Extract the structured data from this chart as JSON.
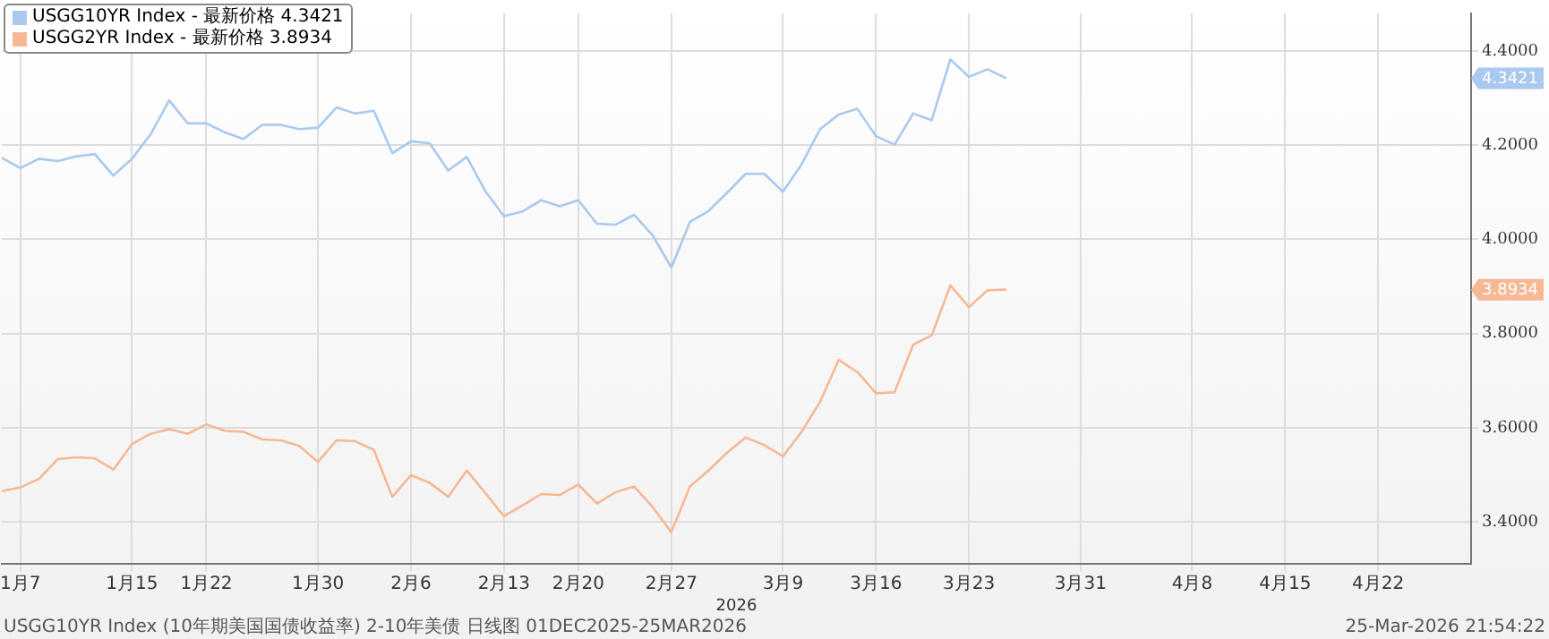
{
  "chart_data": {
    "type": "line",
    "xlabel": "2026",
    "categories": [
      null,
      "1月7",
      null,
      null,
      null,
      null,
      null,
      "1月15",
      null,
      null,
      null,
      "1月22",
      null,
      null,
      null,
      null,
      null,
      "1月30",
      null,
      null,
      null,
      null,
      "2月6",
      null,
      null,
      null,
      null,
      "2月13",
      null,
      null,
      null,
      "2月20",
      null,
      null,
      null,
      null,
      "2月27",
      null,
      null,
      null,
      null,
      null,
      "3月9",
      null,
      null,
      null,
      null,
      "3月16",
      null,
      null,
      null,
      null,
      "3月23",
      null,
      null,
      null,
      null,
      null,
      "3月31",
      null,
      null,
      null,
      null,
      null,
      "4月8",
      null,
      null,
      null,
      null,
      "4月15",
      null,
      null,
      null,
      null,
      "4月22",
      null,
      null,
      null,
      null,
      null
    ],
    "series": [
      {
        "name": "USGG10YR Index - 最新价格 4.3421",
        "color": "#a9c9ee",
        "values": [
          4.173,
          4.151,
          4.171,
          4.166,
          4.176,
          4.181,
          4.135,
          4.171,
          4.223,
          4.295,
          4.246,
          4.246,
          4.227,
          4.213,
          4.243,
          4.243,
          4.234,
          4.237,
          4.28,
          4.267,
          4.273,
          4.183,
          4.208,
          4.204,
          4.146,
          4.175,
          4.102,
          4.049,
          4.059,
          4.083,
          4.07,
          4.083,
          4.033,
          4.031,
          4.052,
          4.008,
          3.94,
          4.037,
          4.06,
          4.099,
          4.139,
          4.139,
          4.101,
          4.159,
          4.234,
          4.265,
          4.277,
          4.219,
          4.201,
          4.267,
          4.253,
          4.382,
          4.345,
          4.361,
          4.342,
          null,
          null,
          null,
          null,
          null,
          null,
          null,
          null,
          null,
          null,
          null,
          null,
          null,
          null,
          null,
          null,
          null,
          null,
          null,
          null,
          null,
          null,
          null,
          null,
          null
        ]
      },
      {
        "name": "USGG2YR Index - 最新价格 3.8934",
        "color": "#f6b994",
        "values": [
          3.465,
          3.473,
          3.491,
          3.533,
          3.537,
          3.535,
          3.511,
          3.565,
          3.587,
          3.597,
          3.587,
          3.607,
          3.593,
          3.591,
          3.575,
          3.573,
          3.561,
          3.527,
          3.573,
          3.571,
          3.553,
          3.453,
          3.499,
          3.483,
          3.453,
          3.509,
          3.461,
          3.412,
          3.435,
          3.459,
          3.457,
          3.479,
          3.439,
          3.463,
          3.475,
          3.431,
          3.378,
          3.475,
          3.509,
          3.547,
          3.579,
          3.563,
          3.539,
          3.591,
          3.655,
          3.744,
          3.718,
          3.673,
          3.675,
          3.776,
          3.796,
          3.902,
          3.856,
          3.892,
          3.893,
          null,
          null,
          null,
          null,
          null,
          null,
          null,
          null,
          null,
          null,
          null,
          null,
          null,
          null,
          null,
          null,
          null,
          null,
          null,
          null,
          null,
          null,
          null,
          null,
          null
        ]
      }
    ],
    "ylim": [
      3.31,
      4.48
    ],
    "yticks": [
      {
        "value": 3.4,
        "label": "3.4000"
      },
      {
        "value": 3.6,
        "label": "3.6000"
      },
      {
        "value": 3.8,
        "label": "3.8000"
      },
      {
        "value": 4.0,
        "label": "4.0000"
      },
      {
        "value": 4.2,
        "label": "4.2000"
      },
      {
        "value": 4.4,
        "label": "4.4000"
      }
    ],
    "annotations": [
      "4.3421",
      "3.8934",
      "USGG10YR Index (10年期美国国债收益率) 2-10年美债 日线图 01DEC2025-25MAR2026",
      "25-Mar-2026 21:54:22"
    ],
    "grid": true,
    "legend": "top left",
    "marker": "none",
    "line_style": "solid"
  }
}
